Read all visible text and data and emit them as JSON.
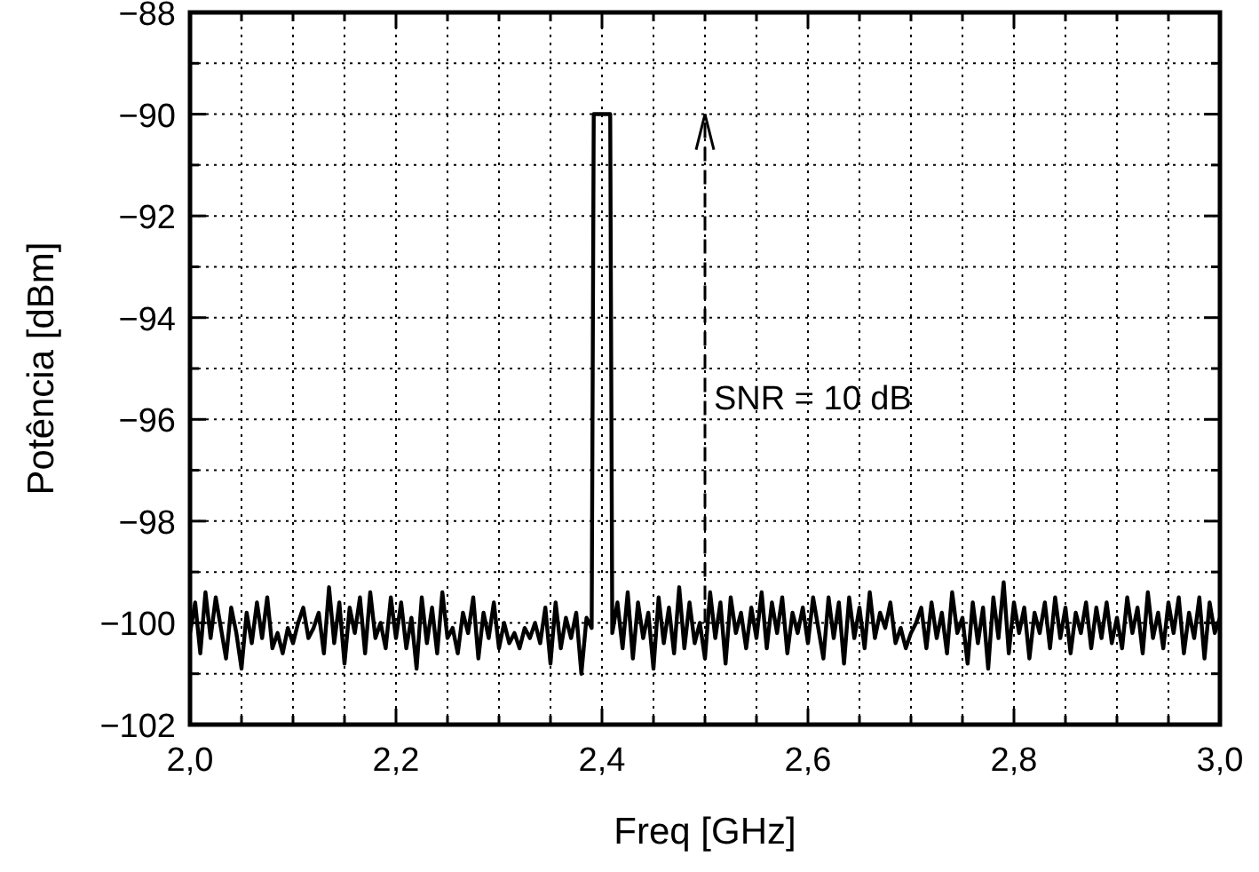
{
  "chart_data": {
    "type": "line",
    "xlabel": "Freq [GHz]",
    "ylabel": "Potência [dBm]",
    "xlim": [
      2.0,
      3.0
    ],
    "ylim": [
      -102,
      -88
    ],
    "xticks": [
      {
        "value": 2.0,
        "label": "2,0"
      },
      {
        "value": 2.05,
        "label": null
      },
      {
        "value": 2.1,
        "label": null
      },
      {
        "value": 2.15,
        "label": null
      },
      {
        "value": 2.2,
        "label": "2,2"
      },
      {
        "value": 2.25,
        "label": null
      },
      {
        "value": 2.3,
        "label": null
      },
      {
        "value": 2.35,
        "label": null
      },
      {
        "value": 2.4,
        "label": "2,4"
      },
      {
        "value": 2.45,
        "label": null
      },
      {
        "value": 2.5,
        "label": null
      },
      {
        "value": 2.55,
        "label": null
      },
      {
        "value": 2.6,
        "label": "2,6"
      },
      {
        "value": 2.65,
        "label": null
      },
      {
        "value": 2.7,
        "label": null
      },
      {
        "value": 2.75,
        "label": null
      },
      {
        "value": 2.8,
        "label": "2,8"
      },
      {
        "value": 2.85,
        "label": null
      },
      {
        "value": 2.9,
        "label": null
      },
      {
        "value": 2.95,
        "label": null
      },
      {
        "value": 3.0,
        "label": "3,0"
      }
    ],
    "yticks": [
      {
        "value": -102,
        "label": "−102"
      },
      {
        "value": -101,
        "label": null
      },
      {
        "value": -100,
        "label": "−100"
      },
      {
        "value": -99,
        "label": null
      },
      {
        "value": -98,
        "label": "−98"
      },
      {
        "value": -97,
        "label": null
      },
      {
        "value": -96,
        "label": "−96"
      },
      {
        "value": -95,
        "label": null
      },
      {
        "value": -94,
        "label": "−94"
      },
      {
        "value": -93,
        "label": null
      },
      {
        "value": -92,
        "label": "−92"
      },
      {
        "value": -91,
        "label": null
      },
      {
        "value": -90,
        "label": "−90"
      },
      {
        "value": -89,
        "label": null
      },
      {
        "value": -88,
        "label": "−88"
      }
    ],
    "grid": true,
    "series": [
      {
        "color": "#000000",
        "line_style": "solid",
        "x": [
          2.0,
          2.005,
          2.01,
          2.015,
          2.02,
          2.025,
          2.03,
          2.035,
          2.04,
          2.045,
          2.05,
          2.055,
          2.06,
          2.065,
          2.07,
          2.075,
          2.08,
          2.085,
          2.09,
          2.095,
          2.1,
          2.105,
          2.11,
          2.115,
          2.12,
          2.125,
          2.13,
          2.135,
          2.14,
          2.145,
          2.15,
          2.155,
          2.16,
          2.165,
          2.17,
          2.175,
          2.18,
          2.185,
          2.19,
          2.195,
          2.2,
          2.205,
          2.21,
          2.215,
          2.22,
          2.225,
          2.23,
          2.235,
          2.24,
          2.245,
          2.25,
          2.255,
          2.26,
          2.265,
          2.27,
          2.275,
          2.28,
          2.285,
          2.29,
          2.295,
          2.3,
          2.305,
          2.31,
          2.315,
          2.32,
          2.325,
          2.33,
          2.335,
          2.34,
          2.345,
          2.35,
          2.355,
          2.36,
          2.365,
          2.37,
          2.375,
          2.38,
          2.385,
          2.39,
          2.392,
          2.408,
          2.41,
          2.415,
          2.42,
          2.425,
          2.43,
          2.435,
          2.44,
          2.445,
          2.45,
          2.455,
          2.46,
          2.465,
          2.47,
          2.475,
          2.48,
          2.485,
          2.49,
          2.495,
          2.5,
          2.505,
          2.51,
          2.515,
          2.52,
          2.525,
          2.53,
          2.535,
          2.54,
          2.545,
          2.55,
          2.555,
          2.56,
          2.565,
          2.57,
          2.575,
          2.58,
          2.585,
          2.59,
          2.595,
          2.6,
          2.605,
          2.61,
          2.615,
          2.62,
          2.625,
          2.63,
          2.635,
          2.64,
          2.645,
          2.65,
          2.655,
          2.66,
          2.665,
          2.67,
          2.675,
          2.68,
          2.685,
          2.69,
          2.695,
          2.7,
          2.705,
          2.71,
          2.715,
          2.72,
          2.725,
          2.73,
          2.735,
          2.74,
          2.745,
          2.75,
          2.755,
          2.76,
          2.765,
          2.77,
          2.775,
          2.78,
          2.785,
          2.79,
          2.795,
          2.8,
          2.805,
          2.81,
          2.815,
          2.82,
          2.825,
          2.83,
          2.835,
          2.84,
          2.845,
          2.85,
          2.855,
          2.86,
          2.865,
          2.87,
          2.875,
          2.88,
          2.885,
          2.89,
          2.895,
          2.9,
          2.905,
          2.91,
          2.915,
          2.92,
          2.925,
          2.93,
          2.935,
          2.94,
          2.945,
          2.95,
          2.955,
          2.96,
          2.965,
          2.97,
          2.975,
          2.98,
          2.985,
          2.99,
          2.995,
          3.0
        ],
        "values": [
          -100.2,
          -99.6,
          -100.6,
          -99.4,
          -100.3,
          -99.5,
          -100.1,
          -100.7,
          -99.7,
          -100.2,
          -100.9,
          -99.8,
          -100.4,
          -99.6,
          -100.3,
          -99.5,
          -100.5,
          -100.2,
          -100.6,
          -100.1,
          -100.4,
          -100.0,
          -99.7,
          -100.3,
          -100.1,
          -99.8,
          -100.6,
          -99.3,
          -100.4,
          -99.6,
          -100.8,
          -99.7,
          -100.2,
          -99.5,
          -100.6,
          -99.4,
          -100.3,
          -100.0,
          -100.5,
          -99.5,
          -100.3,
          -99.6,
          -100.5,
          -99.9,
          -100.9,
          -99.5,
          -100.4,
          -99.7,
          -100.6,
          -99.4,
          -100.3,
          -100.1,
          -100.6,
          -99.8,
          -100.2,
          -99.5,
          -100.7,
          -99.8,
          -100.3,
          -99.6,
          -100.5,
          -100.0,
          -100.4,
          -100.2,
          -100.5,
          -100.1,
          -100.3,
          -100.0,
          -100.4,
          -99.7,
          -100.8,
          -99.6,
          -100.5,
          -99.9,
          -100.3,
          -99.8,
          -101.0,
          -99.9,
          -100.1,
          -90,
          -90,
          -100.2,
          -99.6,
          -100.5,
          -99.4,
          -100.7,
          -99.6,
          -100.3,
          -99.8,
          -100.9,
          -99.5,
          -100.4,
          -99.7,
          -100.6,
          -99.3,
          -100.5,
          -99.6,
          -100.4,
          -100.0,
          -100.7,
          -99.4,
          -100.3,
          -99.6,
          -100.8,
          -99.5,
          -100.2,
          -99.8,
          -100.5,
          -99.7,
          -100.3,
          -99.4,
          -100.5,
          -99.6,
          -100.2,
          -99.5,
          -100.6,
          -99.8,
          -100.2,
          -99.7,
          -100.4,
          -99.5,
          -100.1,
          -100.7,
          -99.5,
          -100.3,
          -99.6,
          -100.8,
          -99.5,
          -100.3,
          -99.7,
          -100.5,
          -99.4,
          -100.3,
          -99.8,
          -100.1,
          -99.6,
          -100.4,
          -100.1,
          -100.5,
          -100.2,
          -100.0,
          -99.7,
          -100.5,
          -99.6,
          -100.3,
          -99.8,
          -100.6,
          -99.4,
          -100.2,
          -99.9,
          -100.8,
          -99.6,
          -100.4,
          -99.7,
          -100.9,
          -99.5,
          -100.3,
          -99.2,
          -100.6,
          -99.6,
          -100.2,
          -99.7,
          -100.7,
          -99.8,
          -100.2,
          -99.6,
          -100.5,
          -99.5,
          -100.3,
          -99.7,
          -100.6,
          -99.8,
          -100.2,
          -99.6,
          -100.5,
          -99.7,
          -100.3,
          -99.6,
          -100.4,
          -99.9,
          -100.5,
          -99.5,
          -100.2,
          -99.7,
          -100.6,
          -99.4,
          -100.3,
          -99.8,
          -100.5,
          -99.6,
          -100.2,
          -99.5,
          -100.6,
          -99.8,
          -100.3,
          -99.5,
          -100.7,
          -99.6,
          -100.2,
          -99.9
        ]
      },
      {
        "color": "#000000",
        "line_style": "dashed",
        "x": [
          2.5,
          2.5
        ],
        "values": [
          -100,
          -90
        ]
      }
    ],
    "annotations": [
      {
        "text": "SNR = 10 dB",
        "x": 2.5,
        "y": -95.8
      }
    ]
  }
}
